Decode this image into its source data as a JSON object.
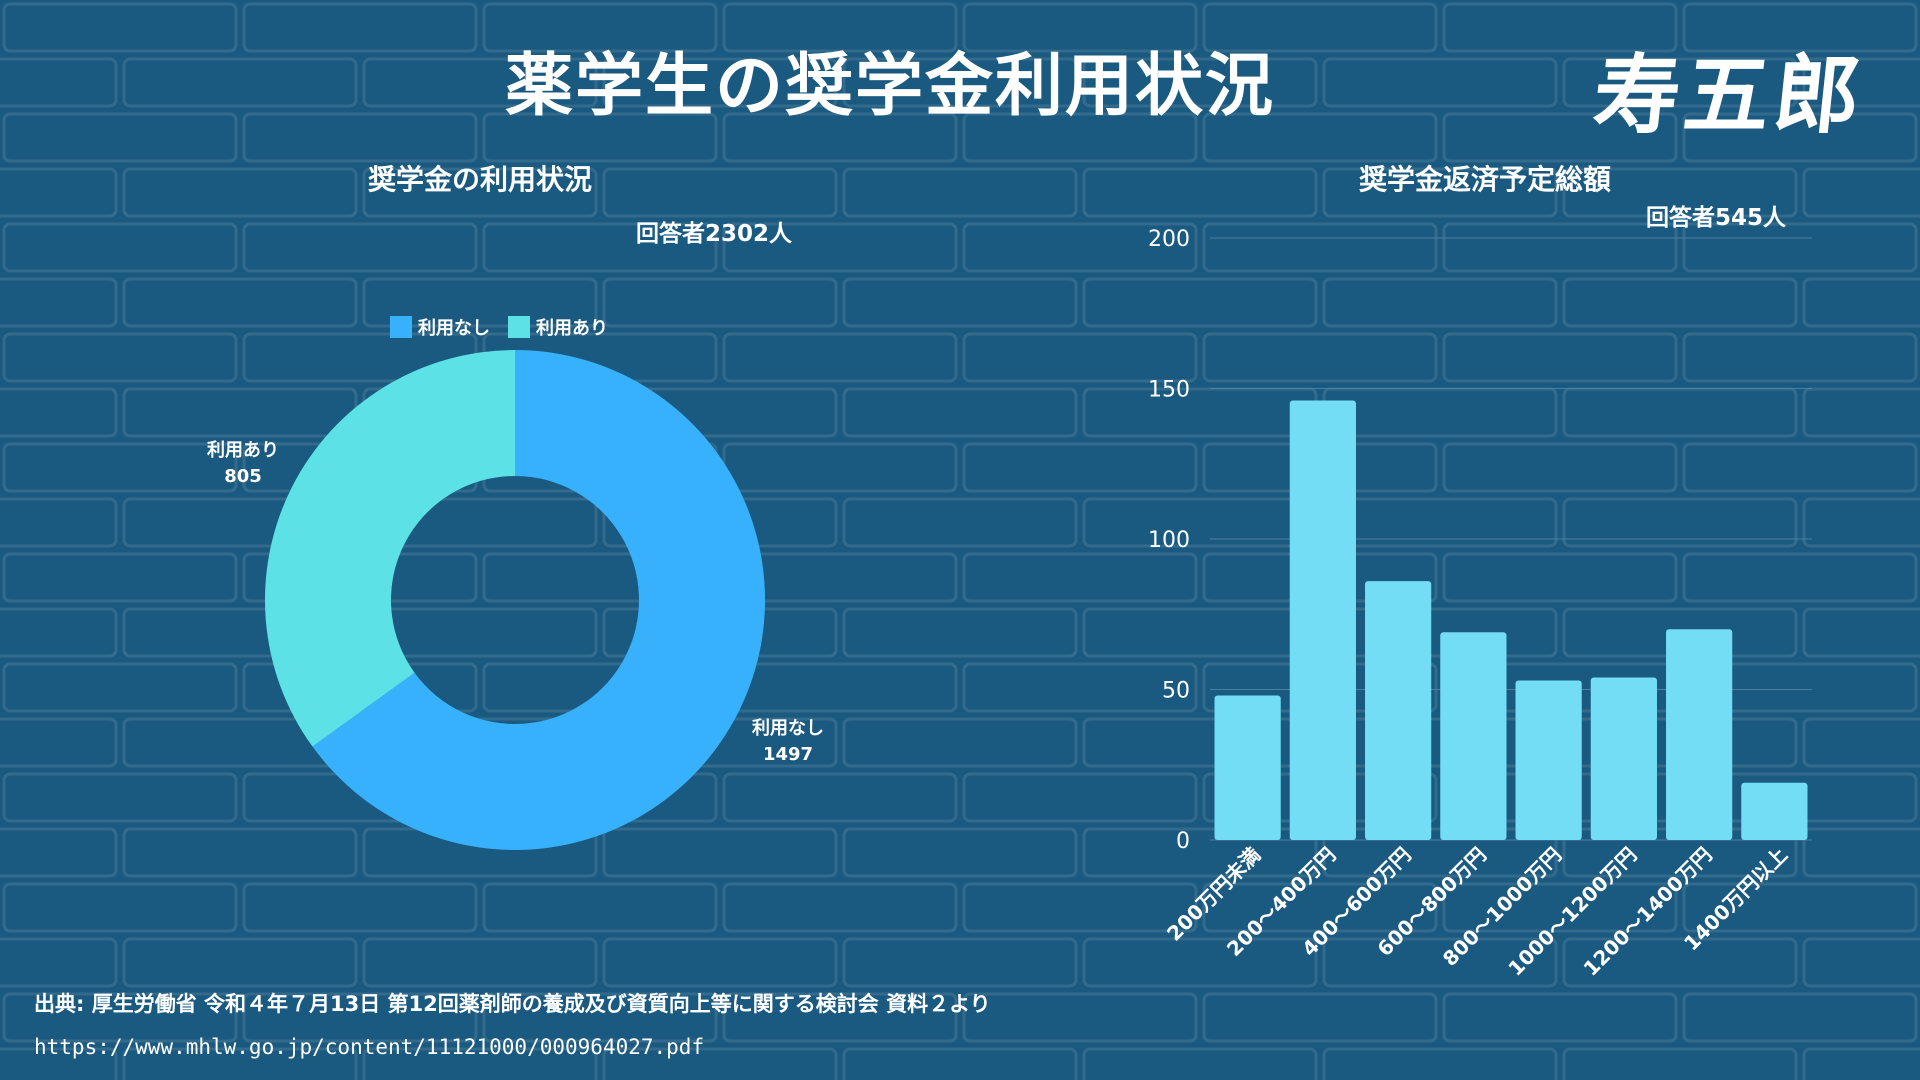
{
  "title": "薬学生の奨学金利用状況",
  "logo": "寿五郎",
  "colors": {
    "background": "#1b5a80",
    "donut_none": "#38b1fc",
    "donut_used": "#5ce2e6",
    "bar": "#72ddf5",
    "gridline": "#4b7fa0"
  },
  "chart_data": [
    {
      "type": "donut",
      "title": "奨学金の利用状況",
      "subtitle": "回答者2302人",
      "legend_position": "top",
      "categories": [
        "利用なし",
        "利用あり"
      ],
      "values": [
        1497,
        805
      ]
    },
    {
      "type": "bar",
      "title": "奨学金返済予定総額",
      "subtitle": "回答者545人",
      "categories": [
        "200万円未満",
        "200〜400万円",
        "400〜600万円",
        "600〜800万円",
        "800〜1000万円",
        "1000〜1200万円",
        "1200〜1400万円",
        "1400万円以上"
      ],
      "values": [
        48,
        146,
        86,
        69,
        53,
        54,
        70,
        19
      ],
      "ylim": [
        0,
        200
      ],
      "yticks": [
        0,
        50,
        100,
        150,
        200
      ],
      "grid": true
    }
  ],
  "footer": {
    "source": "出典: 厚生労働省 令和４年７月13日 第12回薬剤師の養成及び資質向上等に関する検討会 資料２より",
    "url": "https://www.mhlw.go.jp/content/11121000/000964027.pdf"
  }
}
